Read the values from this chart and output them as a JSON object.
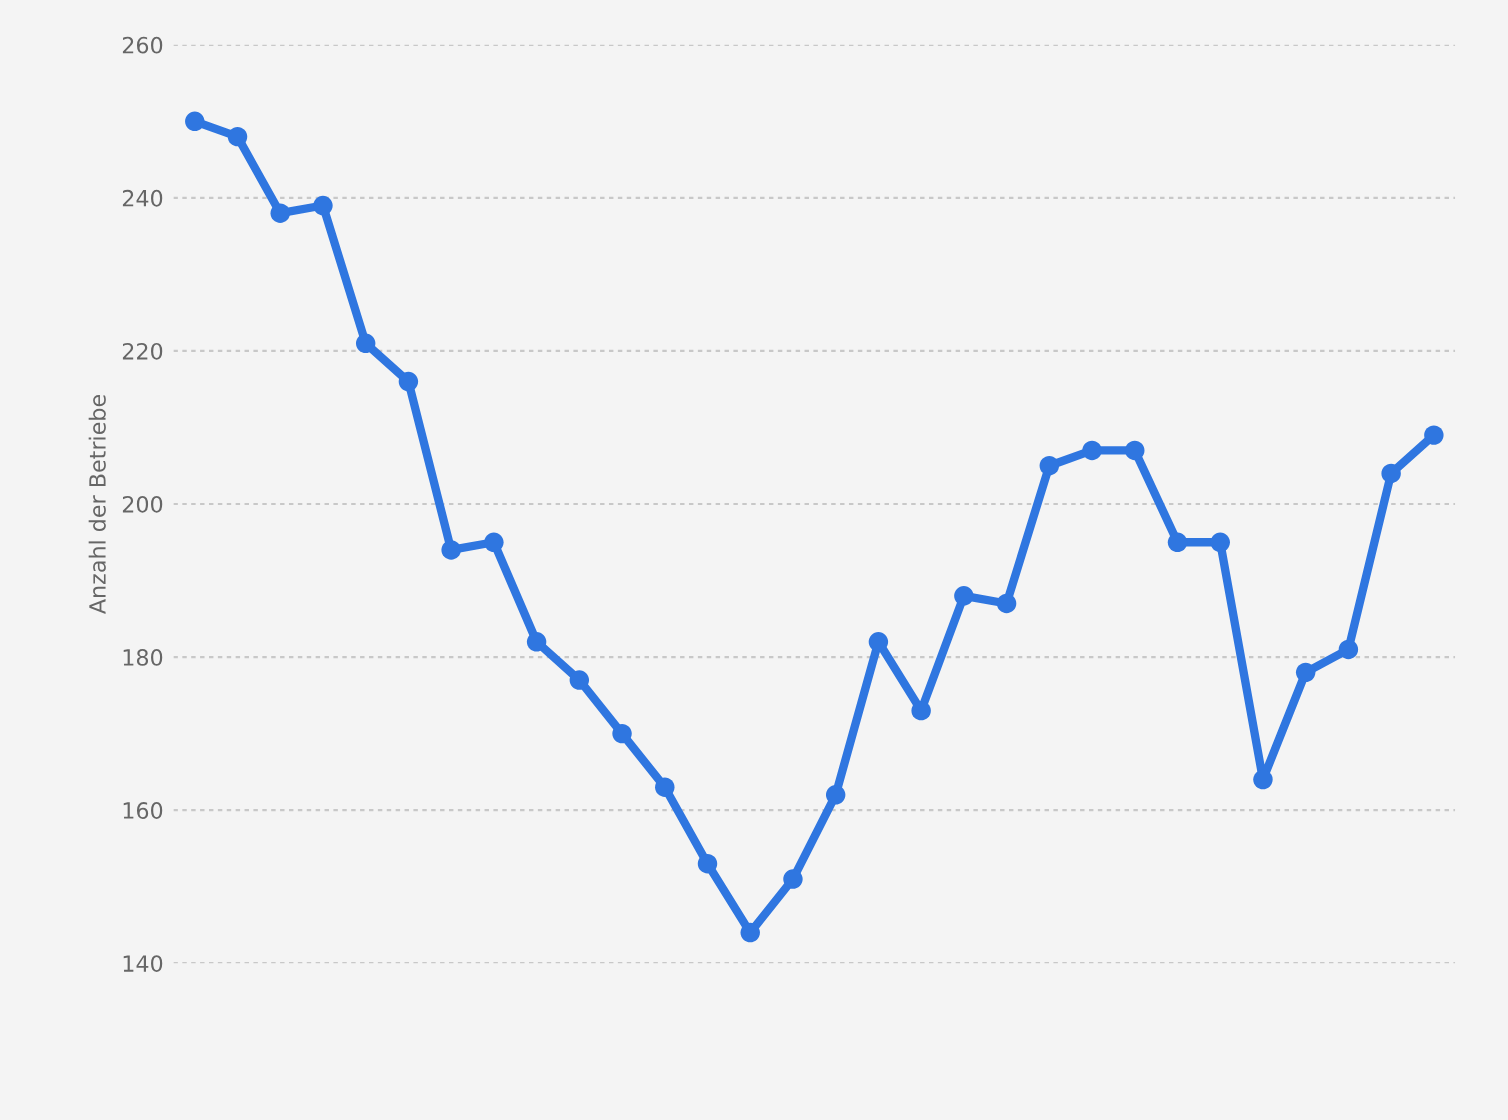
{
  "chart_data": {
    "type": "line",
    "ylabel": "Anzahl der Betriebe",
    "categories": [
      null,
      null,
      null,
      null,
      null,
      null,
      null,
      null,
      null,
      null,
      null,
      null,
      null,
      null,
      null,
      null,
      null,
      null,
      null,
      null,
      null,
      null,
      null,
      null,
      null,
      null,
      null,
      null,
      null,
      null
    ],
    "series": [
      {
        "color": "#2f76e0",
        "values": [
          250,
          248,
          238,
          239,
          221,
          216,
          194,
          195,
          182,
          177,
          170,
          163,
          153,
          144,
          151,
          162,
          182,
          173,
          188,
          187,
          205,
          207,
          207,
          195,
          195,
          164,
          178,
          181,
          204,
          209
        ]
      }
    ],
    "ylim": [
      140,
      260
    ],
    "yticks": [
      140,
      160,
      180,
      200,
      220,
      240,
      260
    ],
    "grid": "y",
    "marker": "circle",
    "line_style": "solid",
    "tick_labels": "y"
  }
}
